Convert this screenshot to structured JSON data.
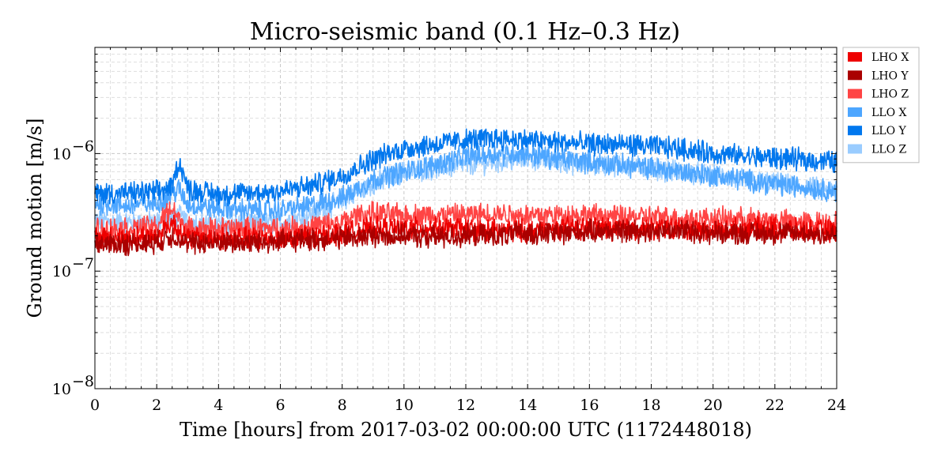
{
  "chart_data": {
    "type": "line",
    "title": "Micro-seismic band (0.1 Hz–0.3 Hz)",
    "xlabel": "Time [hours] from 2017-03-02 00:00:00 UTC (1172448018)",
    "ylabel": "Ground motion [m/s]",
    "xlim": [
      0,
      24
    ],
    "ylim": [
      1e-08,
      8e-06
    ],
    "yscale": "log",
    "grid": true,
    "legend_position": "outside-top-right",
    "x_ticks": [
      "0",
      "2",
      "4",
      "6",
      "8",
      "10",
      "12",
      "14",
      "16",
      "18",
      "20",
      "22",
      "24"
    ],
    "y_ticks": [
      {
        "value": 1e-08,
        "base": "10",
        "exp": "−8"
      },
      {
        "value": 1e-07,
        "base": "10",
        "exp": "−7"
      },
      {
        "value": 1e-06,
        "base": "10",
        "exp": "−6"
      }
    ],
    "series": [
      {
        "name": "LHO X",
        "color": "#ee0000",
        "x": [
          0,
          1,
          2,
          2.5,
          2.7,
          3,
          4,
          5,
          6,
          7,
          8,
          9,
          10,
          11,
          12,
          13,
          14,
          15,
          16,
          17,
          18,
          19,
          20,
          21,
          22,
          23,
          24
        ],
        "values": [
          1.9e-07,
          1.9e-07,
          2e-07,
          2.6e-07,
          2.3e-07,
          1.9e-07,
          1.9e-07,
          1.9e-07,
          1.9e-07,
          1.95e-07,
          2.1e-07,
          2.3e-07,
          2.3e-07,
          2.3e-07,
          2.3e-07,
          2.2e-07,
          2.2e-07,
          2.3e-07,
          2.3e-07,
          2.3e-07,
          2.3e-07,
          2.3e-07,
          2.2e-07,
          2.3e-07,
          2.3e-07,
          2.2e-07,
          2.2e-07
        ]
      },
      {
        "name": "LHO Y",
        "color": "#aa0000",
        "x": [
          0,
          1,
          2,
          2.5,
          2.7,
          3,
          4,
          5,
          6,
          7,
          8,
          9,
          10,
          11,
          12,
          13,
          14,
          15,
          16,
          17,
          18,
          19,
          20,
          21,
          22,
          23,
          24
        ],
        "values": [
          1.7e-07,
          1.7e-07,
          1.75e-07,
          2e-07,
          1.9e-07,
          1.7e-07,
          1.75e-07,
          1.75e-07,
          1.8e-07,
          1.85e-07,
          1.9e-07,
          2e-07,
          2e-07,
          1.95e-07,
          2e-07,
          2e-07,
          2.1e-07,
          2.1e-07,
          2.2e-07,
          2.2e-07,
          2.2e-07,
          2.2e-07,
          2.1e-07,
          2.1e-07,
          2.1e-07,
          2.1e-07,
          2e-07
        ]
      },
      {
        "name": "LHO Z",
        "color": "#ff4444",
        "x": [
          0,
          1,
          2,
          2.5,
          2.7,
          3,
          4,
          5,
          6,
          7,
          8,
          8.5,
          9,
          10,
          11,
          12,
          13,
          14,
          15,
          16,
          17,
          18,
          19,
          20,
          21,
          22,
          23,
          24
        ],
        "values": [
          2.3e-07,
          2.3e-07,
          2.4e-07,
          3.5e-07,
          2.8e-07,
          2.3e-07,
          2.3e-07,
          2.3e-07,
          2.3e-07,
          2.4e-07,
          2.6e-07,
          3e-07,
          3.1e-07,
          3e-07,
          3e-07,
          3e-07,
          3.1e-07,
          3e-07,
          3e-07,
          3e-07,
          2.9e-07,
          2.9e-07,
          2.8e-07,
          2.8e-07,
          2.8e-07,
          2.7e-07,
          2.6e-07,
          2.6e-07
        ]
      },
      {
        "name": "LLO X",
        "color": "#4da6ff",
        "x": [
          0,
          1,
          2,
          2.5,
          2.7,
          3,
          4,
          5,
          6,
          7,
          8,
          9,
          10,
          11,
          12,
          13,
          14,
          15,
          16,
          17,
          18,
          19,
          20,
          21,
          22,
          23,
          24
        ],
        "values": [
          3.8e-07,
          3.6e-07,
          3.8e-07,
          4.5e-07,
          5e-07,
          3.7e-07,
          3.4e-07,
          3.3e-07,
          3.3e-07,
          3.6e-07,
          4.2e-07,
          6e-07,
          7e-07,
          8e-07,
          9.5e-07,
          1e-06,
          1e-06,
          9e-07,
          8.5e-07,
          8e-07,
          7.5e-07,
          7e-07,
          6.5e-07,
          6e-07,
          5.5e-07,
          5.2e-07,
          4.8e-07
        ]
      },
      {
        "name": "LLO Y",
        "color": "#0077ee",
        "x": [
          0,
          1,
          2,
          2.5,
          2.7,
          2.85,
          3,
          4,
          5,
          6,
          7,
          8,
          9,
          10,
          11,
          12,
          13,
          14,
          15,
          16,
          17,
          18,
          19,
          20,
          21,
          22,
          23,
          24
        ],
        "values": [
          4.6e-07,
          4.6e-07,
          4.7e-07,
          5.2e-07,
          8.5e-07,
          7e-07,
          5e-07,
          4.5e-07,
          4.6e-07,
          4.8e-07,
          5.3e-07,
          6.5e-07,
          9e-07,
          1.1e-06,
          1.2e-06,
          1.3e-06,
          1.35e-06,
          1.3e-06,
          1.25e-06,
          1.2e-06,
          1.2e-06,
          1.15e-06,
          1.1e-06,
          1e-06,
          9.5e-07,
          9.2e-07,
          8.8e-07,
          8.5e-07
        ]
      },
      {
        "name": "LLO Z",
        "color": "#99ccff",
        "x": [
          0,
          1,
          2,
          2.5,
          2.7,
          3,
          4,
          5,
          6,
          7,
          8,
          9,
          10,
          11,
          12,
          13,
          14,
          15,
          16,
          17,
          18,
          19,
          20,
          21,
          22,
          23,
          24
        ],
        "values": [
          2.7e-07,
          2.6e-07,
          2.6e-07,
          2.8e-07,
          3e-07,
          2.6e-07,
          2.5e-07,
          2.5e-07,
          2.6e-07,
          3e-07,
          4e-07,
          5.5e-07,
          7e-07,
          7.5e-07,
          8e-07,
          8.5e-07,
          9e-07,
          8.5e-07,
          8e-07,
          8e-07,
          7.5e-07,
          7e-07,
          6.5e-07,
          6e-07,
          5.5e-07,
          5.2e-07,
          4.7e-07
        ]
      }
    ]
  }
}
